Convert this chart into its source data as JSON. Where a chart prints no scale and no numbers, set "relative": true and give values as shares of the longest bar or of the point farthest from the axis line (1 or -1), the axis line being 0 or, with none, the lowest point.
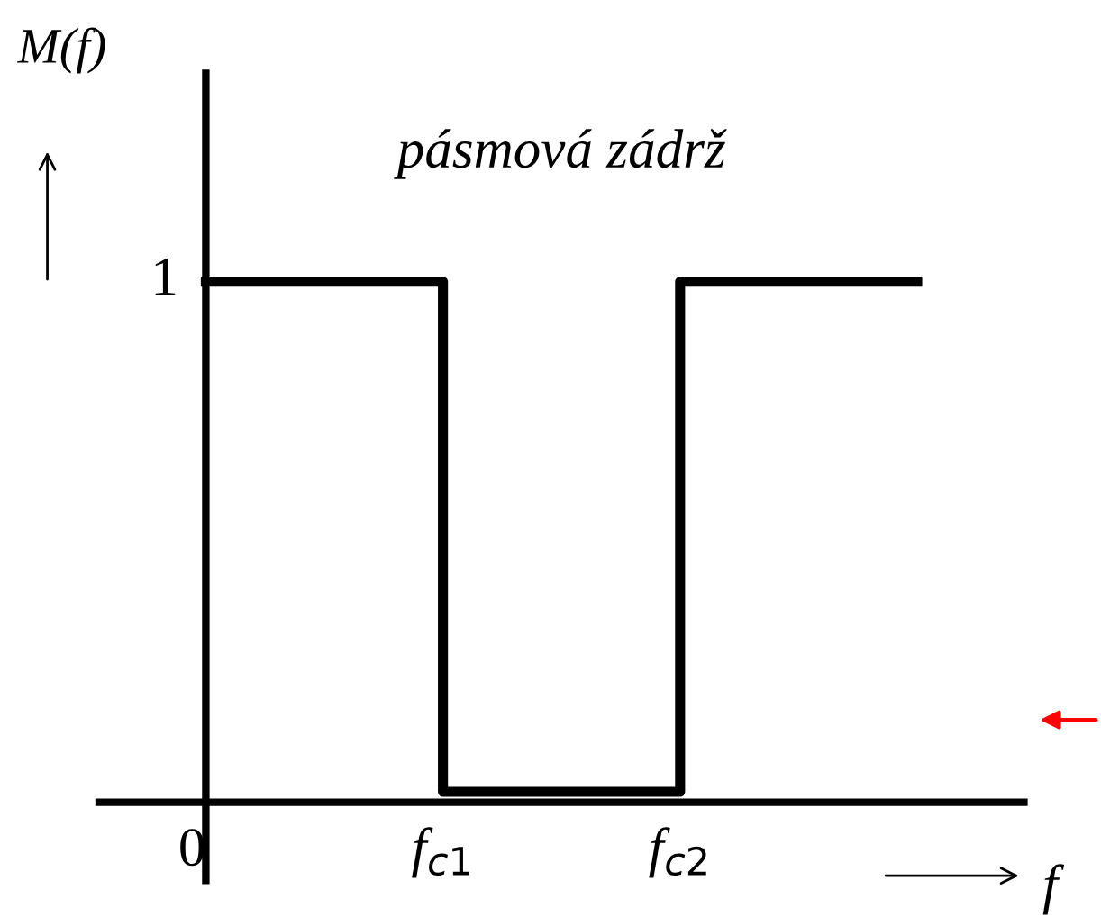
{
  "chart_data": {
    "type": "step",
    "title": "pásmová zádrž",
    "xlabel": "f",
    "ylabel": "M(f)",
    "relative": true,
    "categories": [
      "0",
      "f$_{c1}$",
      "f$_{c2}$",
      null
    ],
    "series": [
      {
        "color": "#000000",
        "values": [
          1,
          0.02,
          1,
          1
        ]
      }
    ],
    "annotations": [
      "1"
    ],
    "legend": false,
    "marker": "none",
    "line_style": "solid"
  }
}
